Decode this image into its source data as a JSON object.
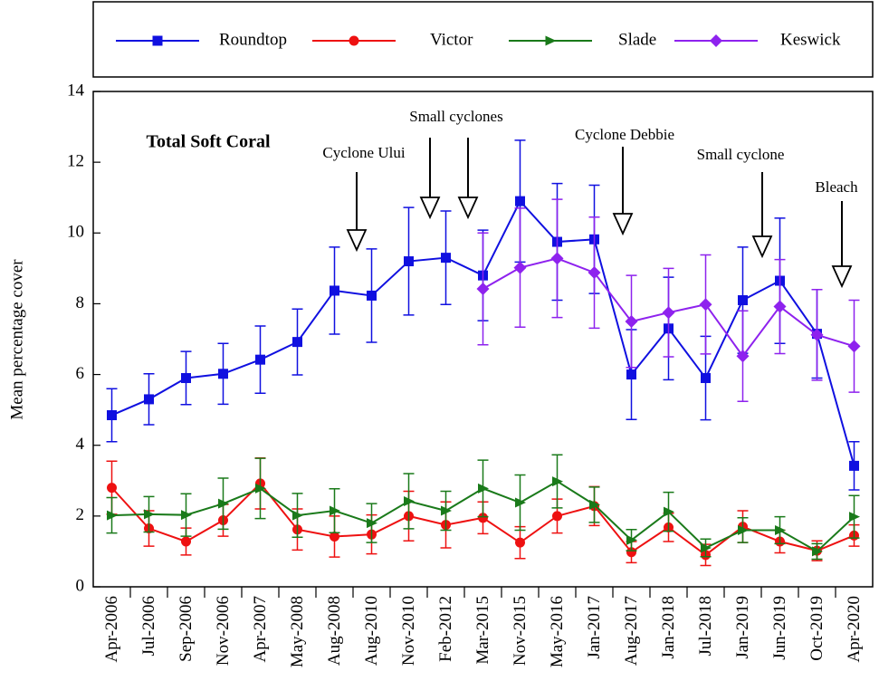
{
  "chart_data": {
    "type": "line",
    "title": "Total Soft Coral",
    "y_label": "Mean percentage cover",
    "categories": [
      "Apr-2006",
      "Jul-2006",
      "Sep-2006",
      "Nov-2006",
      "Apr-2007",
      "May-2008",
      "Aug-2008",
      "Aug-2010",
      "Nov-2010",
      "Feb-2012",
      "Mar-2015",
      "Nov-2015",
      "May-2016",
      "Jan-2017",
      "Aug-2017",
      "Jan-2018",
      "Jul-2018",
      "Jan-2019",
      "Jun-2019",
      "Oct-2019",
      "Apr-2020"
    ],
    "ylim": [
      0,
      14
    ],
    "yticks": [
      0,
      2,
      4,
      6,
      8,
      10,
      12,
      14
    ],
    "legend": "top",
    "series": [
      {
        "name": "Roundtop",
        "color": "#1010e0",
        "marker": "square",
        "values": [
          4.85,
          5.3,
          5.9,
          6.02,
          6.42,
          6.92,
          8.37,
          8.23,
          9.2,
          9.3,
          8.8,
          10.9,
          9.75,
          9.82,
          6.0,
          7.3,
          5.9,
          8.1,
          8.65,
          7.15,
          3.42
        ],
        "errors": [
          0.75,
          0.72,
          0.75,
          0.86,
          0.95,
          0.93,
          1.23,
          1.32,
          1.52,
          1.32,
          1.28,
          1.72,
          1.65,
          1.53,
          1.27,
          1.45,
          1.18,
          1.5,
          1.77,
          1.25,
          0.68
        ]
      },
      {
        "name": "Victor",
        "color": "#ee1111",
        "marker": "circle",
        "values": [
          2.8,
          1.65,
          1.28,
          1.88,
          2.92,
          1.62,
          1.42,
          1.48,
          2.0,
          1.75,
          1.95,
          1.25,
          2.0,
          2.28,
          0.98,
          1.68,
          0.9,
          1.7,
          1.28,
          1.02,
          1.45
        ],
        "errors": [
          0.75,
          0.5,
          0.38,
          0.45,
          0.72,
          0.58,
          0.58,
          0.55,
          0.7,
          0.65,
          0.45,
          0.45,
          0.48,
          0.55,
          0.3,
          0.4,
          0.3,
          0.45,
          0.32,
          0.28,
          0.3
        ]
      },
      {
        "name": "Slade",
        "color": "#1a7a1a",
        "marker": "triangle",
        "values": [
          2.02,
          2.05,
          2.03,
          2.35,
          2.78,
          2.02,
          2.15,
          1.8,
          2.42,
          2.15,
          2.78,
          2.38,
          2.98,
          2.32,
          1.32,
          2.12,
          1.1,
          1.6,
          1.6,
          1.0,
          1.98
        ],
        "errors": [
          0.5,
          0.5,
          0.6,
          0.72,
          0.85,
          0.62,
          0.62,
          0.55,
          0.78,
          0.55,
          0.8,
          0.78,
          0.75,
          0.5,
          0.3,
          0.55,
          0.25,
          0.35,
          0.38,
          0.22,
          0.6
        ]
      },
      {
        "name": "Keswick",
        "color": "#8e22ee",
        "marker": "diamond",
        "values": [
          null,
          null,
          null,
          null,
          null,
          null,
          null,
          null,
          null,
          null,
          8.42,
          9.02,
          9.28,
          8.88,
          7.5,
          7.75,
          7.98,
          6.52,
          7.92,
          7.12,
          6.8
        ],
        "errors": [
          null,
          null,
          null,
          null,
          null,
          null,
          null,
          null,
          null,
          null,
          1.58,
          1.68,
          1.67,
          1.57,
          1.3,
          1.25,
          1.4,
          1.28,
          1.33,
          1.28,
          1.3
        ]
      }
    ],
    "annotations": [
      "Cyclone Ului",
      "Small cyclones",
      "Cyclone Debbie",
      "Small cyclone",
      "Bleach"
    ]
  }
}
